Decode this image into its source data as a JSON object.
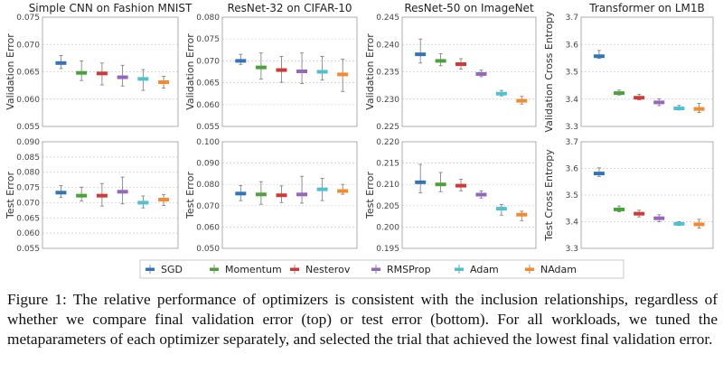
{
  "legend": {
    "entries": [
      "SGD",
      "Momentum",
      "Nesterov",
      "RMSProp",
      "Adam",
      "NAdam"
    ],
    "colors": [
      "#3274b5",
      "#4ca23a",
      "#d03a36",
      "#9467bd",
      "#4fc1d0",
      "#f58a2d"
    ]
  },
  "caption": "Figure 1: The relative performance of optimizers is consistent with the inclusion relationships, regardless of whether we compare final validation error (top) or test error (bottom). For all workloads, we tuned the metaparameters of each optimizer separately, and selected the trial that achieved the lowest final validation error.",
  "chart_data": [
    {
      "type": "box",
      "title": "Simple CNN on Fashion MNIST",
      "ylabel": "Validation Error",
      "ylim": [
        0.055,
        0.075
      ],
      "yticks": [
        "0.055",
        "0.060",
        "0.065",
        "0.070",
        "0.075"
      ],
      "grid": true,
      "series": [
        {
          "name": "SGD",
          "median": 0.0666,
          "low": 0.0656,
          "high": 0.068
        },
        {
          "name": "Momentum",
          "median": 0.0648,
          "low": 0.0634,
          "high": 0.067
        },
        {
          "name": "Nesterov",
          "median": 0.0647,
          "low": 0.0626,
          "high": 0.0666
        },
        {
          "name": "RMSProp",
          "median": 0.064,
          "low": 0.0624,
          "high": 0.0662
        },
        {
          "name": "Adam",
          "median": 0.0637,
          "low": 0.0616,
          "high": 0.0654
        },
        {
          "name": "NAdam",
          "median": 0.0631,
          "low": 0.062,
          "high": 0.0642
        }
      ]
    },
    {
      "type": "box",
      "title": "ResNet-32 on CIFAR-10",
      "ylabel": "Validation Error",
      "ylim": [
        0.055,
        0.08
      ],
      "yticks": [
        "0.055",
        "0.060",
        "0.065",
        "0.070",
        "0.075",
        "0.080"
      ],
      "grid": true,
      "series": [
        {
          "name": "SGD",
          "median": 0.07,
          "low": 0.0692,
          "high": 0.0715
        },
        {
          "name": "Momentum",
          "median": 0.0685,
          "low": 0.0658,
          "high": 0.0718
        },
        {
          "name": "Nesterov",
          "median": 0.0679,
          "low": 0.0651,
          "high": 0.071
        },
        {
          "name": "RMSProp",
          "median": 0.0676,
          "low": 0.0648,
          "high": 0.0718
        },
        {
          "name": "Adam",
          "median": 0.0675,
          "low": 0.0656,
          "high": 0.071
        },
        {
          "name": "NAdam",
          "median": 0.0669,
          "low": 0.063,
          "high": 0.0704
        }
      ]
    },
    {
      "type": "box",
      "title": "ResNet-50 on ImageNet",
      "ylabel": "Validation Error",
      "ylim": [
        0.225,
        0.245
      ],
      "yticks": [
        "0.225",
        "0.230",
        "0.235",
        "0.240",
        "0.245"
      ],
      "grid": true,
      "series": [
        {
          "name": "SGD",
          "median": 0.2382,
          "low": 0.2366,
          "high": 0.241
        },
        {
          "name": "Momentum",
          "median": 0.237,
          "low": 0.2361,
          "high": 0.2383
        },
        {
          "name": "Nesterov",
          "median": 0.2364,
          "low": 0.2355,
          "high": 0.2374
        },
        {
          "name": "RMSProp",
          "median": 0.2346,
          "low": 0.2341,
          "high": 0.2353
        },
        {
          "name": "Adam",
          "median": 0.231,
          "low": 0.2306,
          "high": 0.2316
        },
        {
          "name": "NAdam",
          "median": 0.2297,
          "low": 0.2291,
          "high": 0.2305
        }
      ]
    },
    {
      "type": "box",
      "title": "Transformer on LM1B",
      "ylabel": "Validation Cross Entropy",
      "ylim": [
        3.3,
        3.7
      ],
      "yticks": [
        "3.3",
        "3.4",
        "3.5",
        "3.6",
        "3.7"
      ],
      "grid": true,
      "series": [
        {
          "name": "SGD",
          "median": 3.557,
          "low": 3.549,
          "high": 3.578
        },
        {
          "name": "Momentum",
          "median": 3.422,
          "low": 3.415,
          "high": 3.433
        },
        {
          "name": "Nesterov",
          "median": 3.405,
          "low": 3.397,
          "high": 3.418
        },
        {
          "name": "RMSProp",
          "median": 3.388,
          "low": 3.376,
          "high": 3.401
        },
        {
          "name": "Adam",
          "median": 3.366,
          "low": 3.36,
          "high": 3.377
        },
        {
          "name": "NAdam",
          "median": 3.364,
          "low": 3.351,
          "high": 3.384
        }
      ]
    },
    {
      "type": "box",
      "title": "",
      "ylabel": "Test Error",
      "ylim": [
        0.055,
        0.09
      ],
      "yticks": [
        "0.055",
        "0.060",
        "0.065",
        "0.070",
        "0.075",
        "0.080",
        "0.085",
        "0.090"
      ],
      "grid": true,
      "series": [
        {
          "name": "SGD",
          "median": 0.0733,
          "low": 0.0717,
          "high": 0.0756
        },
        {
          "name": "Momentum",
          "median": 0.0723,
          "low": 0.0705,
          "high": 0.0751
        },
        {
          "name": "Nesterov",
          "median": 0.0723,
          "low": 0.0689,
          "high": 0.0763
        },
        {
          "name": "RMSProp",
          "median": 0.0736,
          "low": 0.0696,
          "high": 0.0784
        },
        {
          "name": "Adam",
          "median": 0.07,
          "low": 0.0683,
          "high": 0.0722
        },
        {
          "name": "NAdam",
          "median": 0.071,
          "low": 0.0691,
          "high": 0.0726
        }
      ]
    },
    {
      "type": "box",
      "title": "",
      "ylabel": "Test Error",
      "ylim": [
        0.05,
        0.1
      ],
      "yticks": [
        "0.050",
        "0.060",
        "0.070",
        "0.080",
        "0.090",
        "0.100"
      ],
      "grid": true,
      "series": [
        {
          "name": "SGD",
          "median": 0.0757,
          "low": 0.0724,
          "high": 0.0795
        },
        {
          "name": "Momentum",
          "median": 0.0753,
          "low": 0.0707,
          "high": 0.0813
        },
        {
          "name": "Nesterov",
          "median": 0.0749,
          "low": 0.0715,
          "high": 0.0793
        },
        {
          "name": "RMSProp",
          "median": 0.0753,
          "low": 0.0712,
          "high": 0.0838
        },
        {
          "name": "Adam",
          "median": 0.0777,
          "low": 0.0724,
          "high": 0.0828
        },
        {
          "name": "NAdam",
          "median": 0.0769,
          "low": 0.0754,
          "high": 0.08
        }
      ]
    },
    {
      "type": "box",
      "title": "",
      "ylabel": "Test Error",
      "ylim": [
        0.195,
        0.22
      ],
      "yticks": [
        "0.195",
        "0.200",
        "0.205",
        "0.210",
        "0.215",
        "0.220"
      ],
      "grid": true,
      "series": [
        {
          "name": "SGD",
          "median": 0.2105,
          "low": 0.208,
          "high": 0.2147
        },
        {
          "name": "Momentum",
          "median": 0.21,
          "low": 0.2083,
          "high": 0.2128
        },
        {
          "name": "Nesterov",
          "median": 0.2097,
          "low": 0.2085,
          "high": 0.2112
        },
        {
          "name": "RMSProp",
          "median": 0.2076,
          "low": 0.2068,
          "high": 0.2085
        },
        {
          "name": "Adam",
          "median": 0.2043,
          "low": 0.2028,
          "high": 0.2053
        },
        {
          "name": "NAdam",
          "median": 0.2029,
          "low": 0.2015,
          "high": 0.2037
        }
      ]
    },
    {
      "type": "box",
      "title": "",
      "ylabel": "Test Cross Entropy",
      "ylim": [
        3.3,
        3.7
      ],
      "yticks": [
        "3.3",
        "3.4",
        "3.5",
        "3.6",
        "3.7"
      ],
      "grid": true,
      "series": [
        {
          "name": "SGD",
          "median": 3.581,
          "low": 3.57,
          "high": 3.602
        },
        {
          "name": "Momentum",
          "median": 3.446,
          "low": 3.437,
          "high": 3.459
        },
        {
          "name": "Nesterov",
          "median": 3.43,
          "low": 3.418,
          "high": 3.443
        },
        {
          "name": "RMSProp",
          "median": 3.413,
          "low": 3.4,
          "high": 3.426
        },
        {
          "name": "Adam",
          "median": 3.392,
          "low": 3.386,
          "high": 3.4
        },
        {
          "name": "NAdam",
          "median": 3.39,
          "low": 3.376,
          "high": 3.409
        }
      ]
    }
  ]
}
